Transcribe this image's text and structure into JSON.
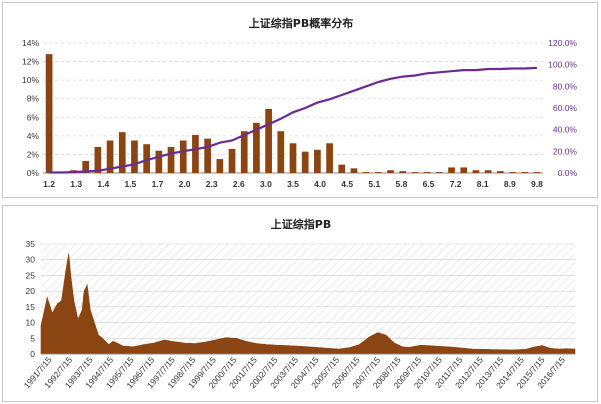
{
  "chart_data": [
    {
      "type": "bar",
      "title": "上证综指PB概率分布",
      "xlabel": "",
      "ylabel": "",
      "ylim": [
        0,
        14
      ],
      "y2lim": [
        0,
        120
      ],
      "y_ticks": [
        "0%",
        "2%",
        "4%",
        "6%",
        "8%",
        "10%",
        "12%",
        "14%"
      ],
      "y2_ticks": [
        "0.0%",
        "20.0%",
        "40.0%",
        "60.0%",
        "80.0%",
        "100.0%",
        "120.0%"
      ],
      "x_tick_labels": [
        "1.2",
        "1.3",
        "1.4",
        "1.5",
        "1.7",
        "2.0",
        "2.3",
        "2.6",
        "3.0",
        "3.5",
        "4.0",
        "4.5",
        "5.1",
        "5.8",
        "6.5",
        "7.2",
        "8.1",
        "8.9",
        "9.8"
      ],
      "series": [
        {
          "kind": "bar",
          "values": [
            12.8,
            0,
            0.3,
            1.3,
            2.8,
            3.5,
            4.4,
            3.5,
            3.1,
            2.4,
            2.8,
            3.5,
            4.1,
            3.7,
            1.5,
            2.6,
            4.5,
            5.4,
            6.9,
            4.5,
            3.2,
            2.3,
            2.5,
            3.2,
            0.9,
            0.5,
            0.1,
            0.1,
            0.3,
            0.2,
            0.1,
            0.1,
            0.1,
            0.6,
            0.6,
            0.3,
            0.3,
            0.2,
            0.1,
            0.1,
            0.1
          ]
        },
        {
          "kind": "line",
          "axis": "right",
          "values": [
            0.5,
            0.5,
            0.8,
            1.5,
            2,
            4,
            6,
            8,
            12,
            15,
            18,
            20,
            22,
            24,
            28,
            30,
            35,
            40,
            45,
            50,
            56,
            60,
            65,
            68,
            72,
            76,
            80,
            84,
            87,
            89,
            90,
            92,
            93,
            94,
            95,
            95,
            96,
            96,
            96.5,
            96.5,
            97
          ]
        }
      ],
      "colors": {
        "bar": "#8b4513",
        "line": "#6a2c8f"
      },
      "grid": true
    },
    {
      "type": "area",
      "title": "上证综指PB",
      "xlabel": "",
      "ylabel": "",
      "ylim": [
        0,
        35
      ],
      "y_ticks": [
        "0",
        "5",
        "10",
        "15",
        "20",
        "25",
        "30",
        "35"
      ],
      "x_tick_labels": [
        "1991/7/15",
        "1992/7/15",
        "1993/7/15",
        "1994/7/15",
        "1995/7/15",
        "1996/7/15",
        "1997/7/15",
        "1998/7/15",
        "1999/7/15",
        "2000/7/15",
        "2001/7/15",
        "2002/7/15",
        "2003/7/15",
        "2004/7/15",
        "2005/7/15",
        "2006/7/15",
        "2007/7/15",
        "2008/7/15",
        "2009/7/15",
        "2010/7/15",
        "2011/7/15",
        "2012/7/15",
        "2013/7/15",
        "2014/7/15",
        "2015/7/15",
        "2016/7/15"
      ],
      "x": [
        1991.0,
        1991.3,
        1991.55,
        1991.8,
        1992.0,
        1992.2,
        1992.35,
        1992.45,
        1992.6,
        1992.8,
        1993.0,
        1993.1,
        1993.25,
        1993.4,
        1993.6,
        1993.8,
        1994.0,
        1994.3,
        1994.5,
        1994.7,
        1995.0,
        1995.5,
        1996.0,
        1996.5,
        1997.0,
        1997.4,
        1998.0,
        1998.5,
        1999.0,
        1999.5,
        2000.0,
        2000.5,
        2001.0,
        2001.5,
        2002.0,
        2002.5,
        2003.0,
        2004.0,
        2005.0,
        2005.5,
        2006.0,
        2006.5,
        2007.0,
        2007.4,
        2007.8,
        2008.2,
        2008.6,
        2008.9,
        2009.5,
        2010.0,
        2011.0,
        2012.0,
        2013.0,
        2014.0,
        2014.6,
        2015.0,
        2015.4,
        2015.8,
        2016.2,
        2016.6,
        2017.0
      ],
      "values": [
        9,
        18,
        13,
        16,
        17,
        26,
        32,
        25,
        17,
        11,
        14,
        20,
        22,
        14,
        10,
        6,
        5,
        3,
        4,
        3.5,
        2.5,
        2.3,
        3,
        3.5,
        4.5,
        4,
        3.5,
        3.3,
        3.8,
        4.5,
        5.2,
        5,
        4,
        3.3,
        3,
        2.8,
        2.7,
        2.3,
        1.8,
        1.6,
        2,
        3,
        5.5,
        6.8,
        6,
        3.5,
        2.3,
        2.1,
        2.8,
        2.6,
        2.2,
        1.6,
        1.4,
        1.3,
        1.5,
        2.2,
        2.7,
        1.8,
        1.6,
        1.7,
        1.6
      ],
      "colors": {
        "fill": "#8b4513"
      },
      "grid": true
    }
  ]
}
